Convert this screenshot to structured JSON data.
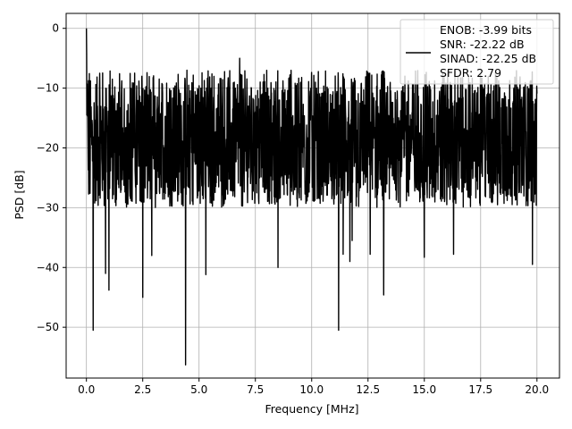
{
  "chart_data": {
    "type": "line",
    "title": "",
    "xlabel": "Frequency [MHz]",
    "ylabel": "PSD [dB]",
    "xlim": [
      -0.9,
      21.0
    ],
    "ylim": [
      -58.5,
      2.5
    ],
    "xticks": [
      0.0,
      2.5,
      5.0,
      7.5,
      10.0,
      12.5,
      15.0,
      17.5,
      20.0
    ],
    "xtick_labels": [
      "0.0",
      "2.5",
      "5.0",
      "7.5",
      "10.0",
      "12.5",
      "15.0",
      "17.5",
      "20.0"
    ],
    "yticks": [
      0,
      -10,
      -20,
      -30,
      -40,
      -50
    ],
    "ytick_labels": [
      "0",
      "−10",
      "−20",
      "−30",
      "−40",
      "−50"
    ],
    "grid": true,
    "legend_position": "top-right",
    "series": [
      {
        "name": "ENOB: -3.99 bits\nSNR: -22.22 dB\nSINAD: -22.25 dB\nSFDR: 2.79",
        "legend_lines": [
          "ENOB: -3.99 bits",
          "SNR: -22.22 dB",
          "SINAD: -22.25 dB",
          "SFDR: 2.79"
        ],
        "color": "#000000",
        "x_range": [
          0.0,
          20.0
        ],
        "start_values": [
          0.0,
          -4.2,
          -14.5,
          -9.3,
          -14.0
        ],
        "noise_floor_mean": -19.0,
        "noise_upper_envelope": -7.0,
        "notable_points": [
          {
            "x": 0.3,
            "y": -50.5
          },
          {
            "x": 0.85,
            "y": -41.0
          },
          {
            "x": 1.0,
            "y": -43.8
          },
          {
            "x": 2.5,
            "y": -45.0
          },
          {
            "x": 2.9,
            "y": -38.0
          },
          {
            "x": 4.4,
            "y": -56.3
          },
          {
            "x": 5.3,
            "y": -41.2
          },
          {
            "x": 6.8,
            "y": -35.8
          },
          {
            "x": 6.8,
            "y": -5.0
          },
          {
            "x": 8.5,
            "y": -40.0
          },
          {
            "x": 11.2,
            "y": -50.5
          },
          {
            "x": 11.4,
            "y": -37.8
          },
          {
            "x": 11.7,
            "y": -39.0
          },
          {
            "x": 11.8,
            "y": -35.5
          },
          {
            "x": 12.6,
            "y": -37.8
          },
          {
            "x": 13.2,
            "y": -44.6
          },
          {
            "x": 15.0,
            "y": -38.3
          },
          {
            "x": 16.3,
            "y": -37.8
          },
          {
            "x": 19.8,
            "y": -39.5
          }
        ]
      }
    ]
  }
}
